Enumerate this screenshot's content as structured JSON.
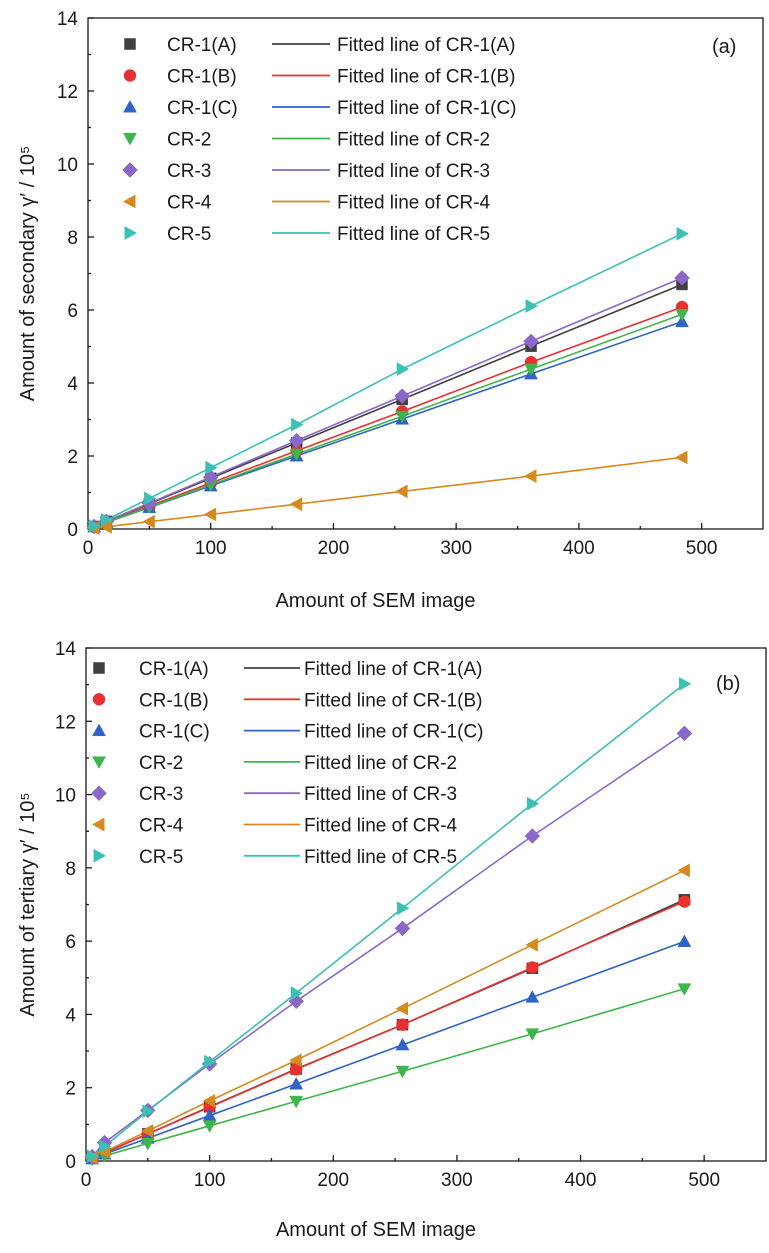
{
  "chart_data": [
    {
      "type": "scatter",
      "panel_label": "(a)",
      "title": "",
      "xlabel": "Amount of SEM image",
      "ylabel": "Amount of secondary γ′ / 10⁵",
      "xlim": [
        0,
        550
      ],
      "ylim": [
        0,
        14
      ],
      "xticks": [
        "0",
        "100",
        "200",
        "300",
        "400",
        "500"
      ],
      "yticks": [
        "0",
        "2",
        "4",
        "6",
        "8",
        "10",
        "12",
        "14"
      ],
      "legend_position": "top-left",
      "x": [
        5,
        15,
        50,
        100,
        170,
        256,
        361,
        484
      ],
      "series": [
        {
          "name": "CR-1(A)",
          "fit_name": "Fitted line of CR-1(A)",
          "color": "#404040",
          "marker": "square",
          "values": [
            0.07,
            0.21,
            0.69,
            1.39,
            2.36,
            3.55,
            5.01,
            6.7
          ]
        },
        {
          "name": "CR-1(B)",
          "fit_name": "Fitted line of CR-1(B)",
          "color": "#e8312f",
          "marker": "circle",
          "values": [
            0.06,
            0.19,
            0.63,
            1.26,
            2.14,
            3.22,
            4.57,
            6.08
          ]
        },
        {
          "name": "CR-1(C)",
          "fit_name": "Fitted line of CR-1(C)",
          "color": "#2f63c8",
          "marker": "triangle-up",
          "values": [
            0.06,
            0.18,
            0.59,
            1.18,
            2.0,
            3.01,
            4.25,
            5.68
          ]
        },
        {
          "name": "CR-2",
          "fit_name": "Fitted line of CR-2",
          "color": "#3db54a",
          "marker": "triangle-down",
          "values": [
            0.06,
            0.18,
            0.6,
            1.21,
            2.05,
            3.09,
            4.38,
            5.88
          ]
        },
        {
          "name": "CR-3",
          "fit_name": "Fitted line of CR-3",
          "color": "#8a68c8",
          "marker": "diamond",
          "values": [
            0.07,
            0.21,
            0.71,
            1.42,
            2.42,
            3.64,
            5.14,
            6.88
          ]
        },
        {
          "name": "CR-4",
          "fit_name": "Fitted line of CR-4",
          "color": "#d48a1e",
          "marker": "triangle-left",
          "values": [
            0.02,
            0.06,
            0.2,
            0.4,
            0.68,
            1.03,
            1.45,
            1.96
          ]
        },
        {
          "name": "CR-5",
          "fit_name": "Fitted line of CR-5",
          "color": "#3cc0b4",
          "marker": "triangle-right",
          "values": [
            0.08,
            0.25,
            0.84,
            1.68,
            2.86,
            4.38,
            6.11,
            8.09
          ]
        }
      ]
    },
    {
      "type": "scatter",
      "panel_label": "(b)",
      "title": "",
      "xlabel": "Amount of SEM image",
      "ylabel": "Amount of tertiary γ′ / 10⁵",
      "xlim": [
        0,
        550
      ],
      "ylim": [
        0,
        14
      ],
      "xticks": [
        "0",
        "100",
        "200",
        "300",
        "400",
        "500"
      ],
      "yticks": [
        "0",
        "2",
        "4",
        "6",
        "8",
        "10",
        "12",
        "14"
      ],
      "legend_position": "top-left",
      "x": [
        5,
        15,
        50,
        100,
        170,
        256,
        361,
        484
      ],
      "series": [
        {
          "name": "CR-1(A)",
          "fit_name": "Fitted line of CR-1(A)",
          "color": "#404040",
          "marker": "square",
          "values": [
            0.07,
            0.22,
            0.74,
            1.48,
            2.51,
            3.72,
            5.26,
            7.13
          ]
        },
        {
          "name": "CR-1(B)",
          "fit_name": "Fitted line of CR-1(B)",
          "color": "#e8312f",
          "marker": "circle",
          "values": [
            0.07,
            0.22,
            0.74,
            1.47,
            2.5,
            3.72,
            5.28,
            7.08
          ]
        },
        {
          "name": "CR-1(C)",
          "fit_name": "Fitted line of CR-1(C)",
          "color": "#2f63c8",
          "marker": "triangle-up",
          "values": [
            0.06,
            0.19,
            0.62,
            1.24,
            2.1,
            3.17,
            4.47,
            5.99
          ]
        },
        {
          "name": "CR-2",
          "fit_name": "Fitted line of CR-2",
          "color": "#3db54a",
          "marker": "triangle-down",
          "values": [
            0.05,
            0.14,
            0.48,
            0.96,
            1.63,
            2.45,
            3.47,
            4.7
          ]
        },
        {
          "name": "CR-3",
          "fit_name": "Fitted line of CR-3",
          "color": "#8a68c8",
          "marker": "diamond",
          "values": [
            0.12,
            0.5,
            1.38,
            2.65,
            4.36,
            6.35,
            8.87,
            11.67
          ]
        },
        {
          "name": "CR-4",
          "fit_name": "Fitted line of CR-4",
          "color": "#d48a1e",
          "marker": "triangle-left",
          "values": [
            0.08,
            0.25,
            0.82,
            1.64,
            2.75,
            4.16,
            5.9,
            7.93
          ]
        },
        {
          "name": "CR-5",
          "fit_name": "Fitted line of CR-5",
          "color": "#3cc0b4",
          "marker": "triangle-right",
          "values": [
            0.13,
            0.4,
            1.36,
            2.71,
            4.58,
            6.9,
            9.75,
            13.02
          ]
        }
      ]
    }
  ]
}
